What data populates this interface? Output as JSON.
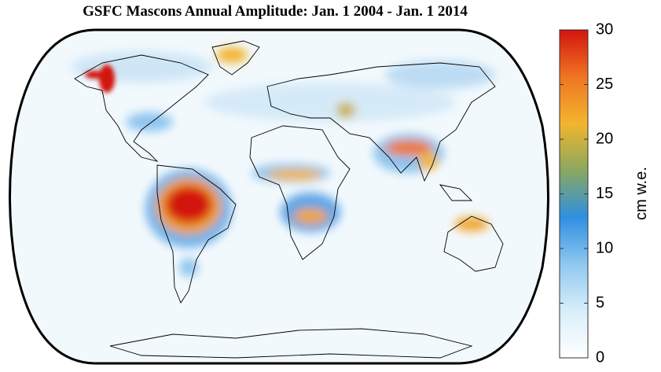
{
  "title": "GSFC Mascons Annual Amplitude: Jan. 1 2004 - Jan. 1 2014",
  "colorbar": {
    "label": "cm w.e.",
    "lim": [
      0,
      30
    ],
    "ticks": [
      0,
      5,
      10,
      15,
      20,
      25,
      30
    ],
    "colors": [
      "#ffffff",
      "#d9eefa",
      "#8fc8f0",
      "#2f8fe2",
      "#8aa860",
      "#f2b52e",
      "#f07522",
      "#d3140f"
    ]
  }
}
